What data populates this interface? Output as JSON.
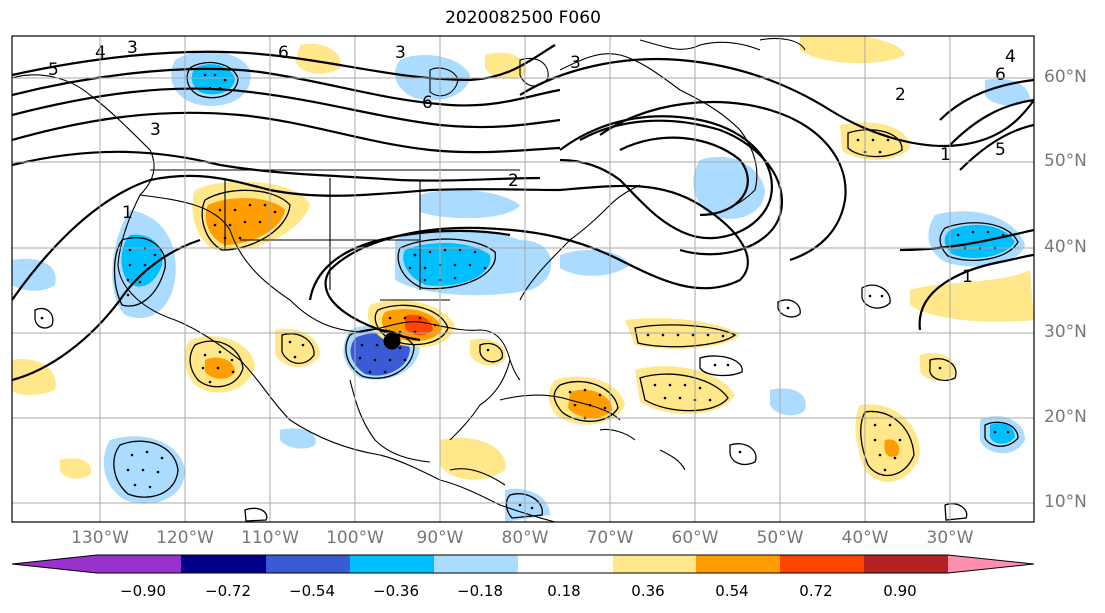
{
  "title": "2020082500 F060",
  "lat_labels": [
    "60°N",
    "50°N",
    "40°N",
    "30°N",
    "20°N",
    "10°N"
  ],
  "lon_labels": [
    "130°W",
    "120°W",
    "110°W",
    "100°W",
    "90°W",
    "80°W",
    "70°W",
    "60°W",
    "50°W",
    "40°W",
    "30°W"
  ],
  "colorbar": {
    "ticks": [
      "−0.90",
      "−0.72",
      "−0.54",
      "−0.36",
      "−0.18",
      "0.18",
      "0.36",
      "0.54",
      "0.72",
      "0.90"
    ],
    "colors": [
      "#9932cc",
      "#00008b",
      "#3b5bd6",
      "#00bfff",
      "#abdcff",
      "#ffffff",
      "#ffe78a",
      "#ff9e00",
      "#ff4500",
      "#b22222",
      "#ff8fb0"
    ]
  },
  "contour_labels": [
    "1",
    "2",
    "3",
    "4",
    "5",
    "6"
  ],
  "colors": {
    "grid": "#aaaaaa",
    "contour": "#000000",
    "coast": "#000000",
    "marker": "#000000"
  }
}
